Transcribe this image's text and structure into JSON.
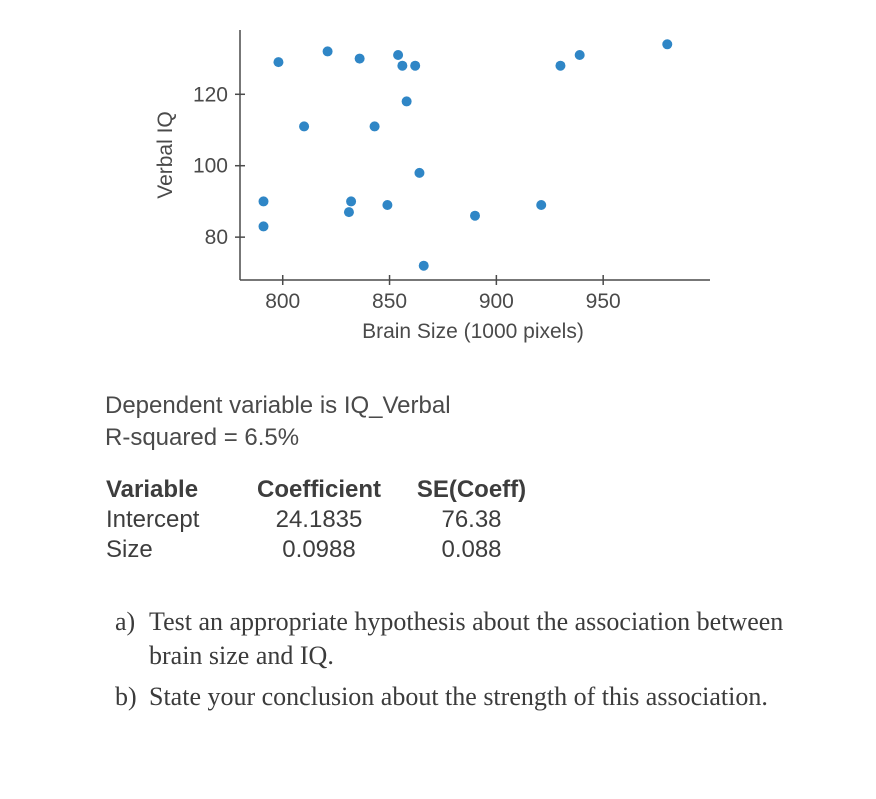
{
  "chart": {
    "type": "scatter",
    "xlabel": "Brain Size (1000 pixels)",
    "ylabel": "Verbal IQ",
    "label_fontsize": 21,
    "tick_fontsize": 21,
    "xlim": [
      780,
      1000
    ],
    "ylim": [
      68,
      138
    ],
    "xticks": [
      800,
      850,
      900,
      950
    ],
    "yticks": [
      80,
      100,
      120
    ],
    "axis_color": "#4a4a4a",
    "background_color": "#ffffff",
    "point_color": "#2f86c6",
    "point_radius": 5,
    "points": [
      {
        "x": 791,
        "y": 83
      },
      {
        "x": 791,
        "y": 90
      },
      {
        "x": 798,
        "y": 129
      },
      {
        "x": 810,
        "y": 111
      },
      {
        "x": 821,
        "y": 132
      },
      {
        "x": 831,
        "y": 87
      },
      {
        "x": 832,
        "y": 90
      },
      {
        "x": 836,
        "y": 130
      },
      {
        "x": 843,
        "y": 111
      },
      {
        "x": 849,
        "y": 89
      },
      {
        "x": 854,
        "y": 131
      },
      {
        "x": 856,
        "y": 128
      },
      {
        "x": 858,
        "y": 118
      },
      {
        "x": 862,
        "y": 128
      },
      {
        "x": 864,
        "y": 98
      },
      {
        "x": 866,
        "y": 72
      },
      {
        "x": 890,
        "y": 86
      },
      {
        "x": 921,
        "y": 89
      },
      {
        "x": 930,
        "y": 128
      },
      {
        "x": 939,
        "y": 131
      },
      {
        "x": 980,
        "y": 134
      }
    ]
  },
  "summary": {
    "line1": "Dependent variable is IQ_Verbal",
    "line2_prefix": "R-squared ",
    "line2_eq": "=",
    "line2_value": " 6.5%"
  },
  "table": {
    "headers": {
      "variable": "Variable",
      "coefficient": "Coefficient",
      "se": "SE(Coeff)"
    },
    "rows": [
      {
        "variable": "Intercept",
        "coefficient": "24.1835",
        "se": "76.38"
      },
      {
        "variable": "Size",
        "coefficient": "0.0988",
        "se": "0.088"
      }
    ]
  },
  "questions": {
    "a": {
      "marker": "a)",
      "text": "Test an appropriate hypothesis about the association between brain size and IQ."
    },
    "b": {
      "marker": "b)",
      "text": "State your conclusion about the strength of this association."
    }
  }
}
